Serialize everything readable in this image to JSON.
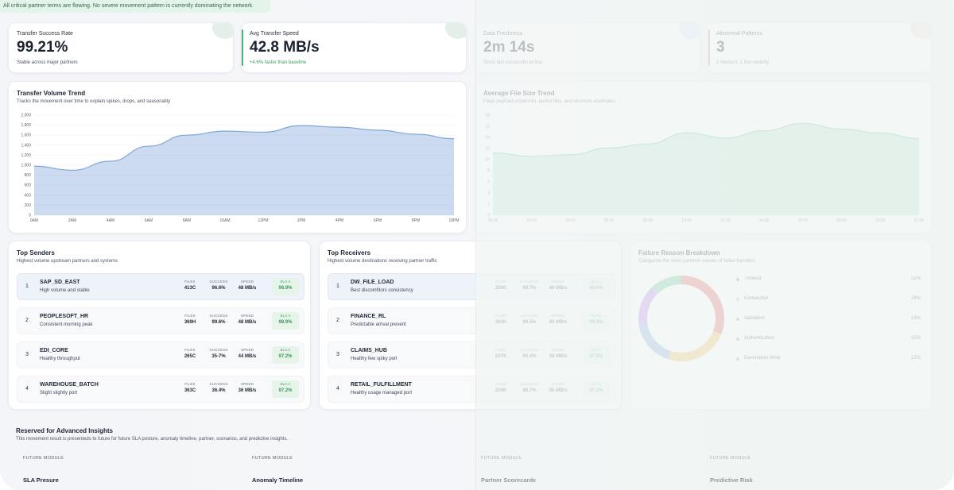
{
  "banner": "All critical partner terms are flowing. No severe movement pattern is currently dominating the network.",
  "kpis": [
    {
      "label": "Transfer Success Rate",
      "value": "99.21%",
      "sub": "Stable across major partners"
    },
    {
      "label": "Avg Transfer Speed",
      "value": "42.8 MB/s",
      "sub": "+4.6% faster than baseline"
    },
    {
      "label": "Data Freshness",
      "value": "2m 14s",
      "sub": "Since last successful arrival"
    },
    {
      "label": "Abnormal Patterns",
      "value": "3",
      "sub": "2 medium, 1 low severity"
    }
  ],
  "volume_trend": {
    "title": "Transfer Volume Trend",
    "subtitle": "Tracks the movement over time to explain spikes, drops, and seasonality"
  },
  "file_size_trend": {
    "title": "Average File Size Trend",
    "subtitle": "Flags payload expansion, partial files, and structure anomalies"
  },
  "chart_data": [
    {
      "type": "area",
      "title": "Transfer Volume Trend",
      "x": [
        "0AM",
        "2AM",
        "4AM",
        "6AM",
        "8AM",
        "10AM",
        "12PM",
        "2PM",
        "4PM",
        "6PM",
        "8PM",
        "10PM"
      ],
      "ylim": [
        0,
        2000
      ],
      "y_ticks": [
        "0",
        "200",
        "400",
        "600",
        "800",
        "1,000",
        "1,200",
        "1,400",
        "1,600",
        "1,800",
        "2,000"
      ],
      "series": [
        {
          "values": [
            980,
            900,
            1080,
            1380,
            1600,
            1680,
            1660,
            1790,
            1760,
            1700,
            1620,
            1530
          ]
        }
      ],
      "color": "#7fa6d9",
      "grid": true
    },
    {
      "type": "area",
      "title": "Average File Size Trend",
      "x": [
        "00:00",
        "02:00",
        "04:00",
        "06:00",
        "08:00",
        "10:00",
        "12:00",
        "14:00",
        "16:00",
        "18:00",
        "20:00",
        "22:00"
      ],
      "ylim": [
        0,
        18
      ],
      "y_ticks": [
        "0",
        "2",
        "4",
        "6",
        "8",
        "10",
        "12",
        "14",
        "16",
        "18"
      ],
      "series": [
        {
          "values": [
            11.2,
            10.6,
            10.9,
            12.1,
            12.8,
            14.8,
            13.9,
            15.2,
            16.5,
            15.5,
            14.8,
            13.8
          ]
        }
      ],
      "color": "#6cc295",
      "grid": true
    },
    {
      "type": "pie",
      "title": "Failure Reason Breakdown",
      "categories": [
        "Timeout",
        "Connection",
        "Validation",
        "Authentication",
        "Destination Write"
      ],
      "values": [
        31,
        24,
        18,
        15,
        12
      ],
      "colors": [
        "#e36d6d",
        "#f0c56b",
        "#8cb2e6",
        "#b88cf0",
        "#6fcaa6"
      ],
      "legend": "right"
    }
  ],
  "senders": {
    "title": "Top Senders",
    "subtitle": "Highest volume upstream partners and systems",
    "stat_labels": [
      "FILES",
      "SUCCESS",
      "SPEED",
      "SLA A"
    ],
    "rows": [
      {
        "rank": "1",
        "name": "SAP_SD_EAST",
        "desc": "High volume and stable",
        "files": "413C",
        "success": "96.6%",
        "speed": "48 MB/s",
        "sla": "98.9%"
      },
      {
        "rank": "2",
        "name": "PEOPLESOFT_HR",
        "desc": "Consistent morning peak",
        "files": "369H",
        "success": "99.6%",
        "speed": "48 MB/s",
        "sla": "98.9%"
      },
      {
        "rank": "3",
        "name": "EDI_CORE",
        "desc": "Healthy throughput",
        "files": "265C",
        "success": "35-7%",
        "speed": "44 MB/s",
        "sla": "97.2%"
      },
      {
        "rank": "4",
        "name": "WAREHOUSE_BATCH",
        "desc": "Slight slightly port",
        "files": "363C",
        "success": "36.4%",
        "speed": "36 MB/s",
        "sla": "97.2%"
      }
    ]
  },
  "receivers": {
    "title": "Top Receivers",
    "subtitle": "Highest volume destinations receiving partner traffic",
    "stat_labels": [
      "FILES",
      "SUCCESS",
      "SPEED",
      "SLA A"
    ],
    "rows": [
      {
        "rank": "1",
        "name": "DW_FILE_LOAD",
        "desc": "Best discomfitors consistency",
        "files": "209K",
        "success": "99.7%",
        "speed": "46 MB/s",
        "sla": "98.6%"
      },
      {
        "rank": "2",
        "name": "FINANCE_RL",
        "desc": "Predictable arrival prevent",
        "files": "264K",
        "success": "99.5%",
        "speed": "40 MB/s",
        "sla": "98.9%"
      },
      {
        "rank": "3",
        "name": "CLAIMS_HUB",
        "desc": "Healthy few spiky port",
        "files": "237K",
        "success": "95.4%",
        "speed": "38 MB/s",
        "sla": "97.8%"
      },
      {
        "rank": "4",
        "name": "RETAIL_FULFILLMENT",
        "desc": "Healthy usage managed port",
        "files": "209K",
        "success": "98.7%",
        "speed": "35 MB/s",
        "sla": "97.2%"
      }
    ]
  },
  "failure": {
    "title": "Failure Reason Breakdown",
    "subtitle": "Categorize the most common causes of failed transfers",
    "items": [
      {
        "name": "Timeout",
        "pct": "31%"
      },
      {
        "name": "Connection",
        "pct": "24%"
      },
      {
        "name": "Validation",
        "pct": "18%"
      },
      {
        "name": "Authentication",
        "pct": "15%"
      },
      {
        "name": "Destination Write",
        "pct": "12%"
      }
    ]
  },
  "insights": {
    "title": "Reserved for Advanced Insights",
    "subtitle": "This movement result is presenteds to future for future SLA posture, anomaly timeline, partner, scenarios, and predictive insights.",
    "modules": [
      {
        "label": "FUTURE MODULE",
        "title": "SLA Presure"
      },
      {
        "label": "FUTURE MODULE",
        "title": "Anomaly Timeline"
      },
      {
        "label": "FUTURE MODULE",
        "title": "Partner Scorecarde"
      },
      {
        "label": "FUTURE MODULE",
        "title": "Predictive Risk"
      }
    ]
  }
}
